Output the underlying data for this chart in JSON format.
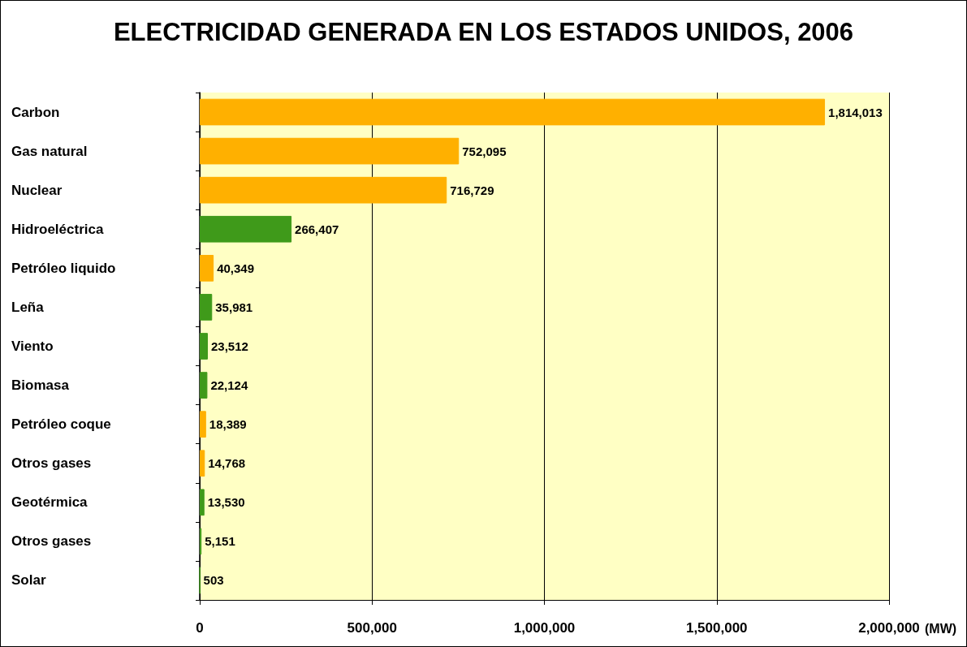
{
  "chart_data": {
    "type": "bar",
    "orientation": "horizontal",
    "title": "ELECTRICIDAD GENERADA EN LOS ESTADOS UNIDOS, 2006",
    "xlabel": "(MW)",
    "categories": [
      "Carbon",
      "Gas natural",
      "Nuclear",
      "Hidroeléctrica",
      "Petróleo liquido",
      "Leña",
      "Viento",
      "Biomasa",
      "Petróleo coque",
      "Otros gases",
      "Geotérmica",
      "Otros gases",
      "Solar"
    ],
    "values": [
      1814013,
      752095,
      716729,
      266407,
      40349,
      35981,
      23512,
      22124,
      18389,
      14768,
      13530,
      5151,
      503
    ],
    "colors": [
      "#ffb000",
      "#ffb000",
      "#ffb000",
      "#3f9a1a",
      "#ffb000",
      "#3f9a1a",
      "#3f9a1a",
      "#3f9a1a",
      "#ffb000",
      "#ffb000",
      "#3f9a1a",
      "#3f9a1a",
      "#3f9a1a"
    ],
    "value_labels": [
      "1,814,013",
      "752,095",
      "716,729",
      "266,407",
      "40,349",
      "35,981",
      "23,512",
      "22,124",
      "18,389",
      "14,768",
      "13,530",
      "5,151",
      "503"
    ],
    "xlim": [
      0,
      2000000
    ],
    "xticks": [
      {
        "value": 0,
        "label": "0"
      },
      {
        "value": 500000,
        "label": "500,000"
      },
      {
        "value": 1000000,
        "label": "1,000,000"
      },
      {
        "value": 1500000,
        "label": "1,500,000"
      },
      {
        "value": 2000000,
        "label": "2,000,000"
      }
    ],
    "grid": "x"
  }
}
